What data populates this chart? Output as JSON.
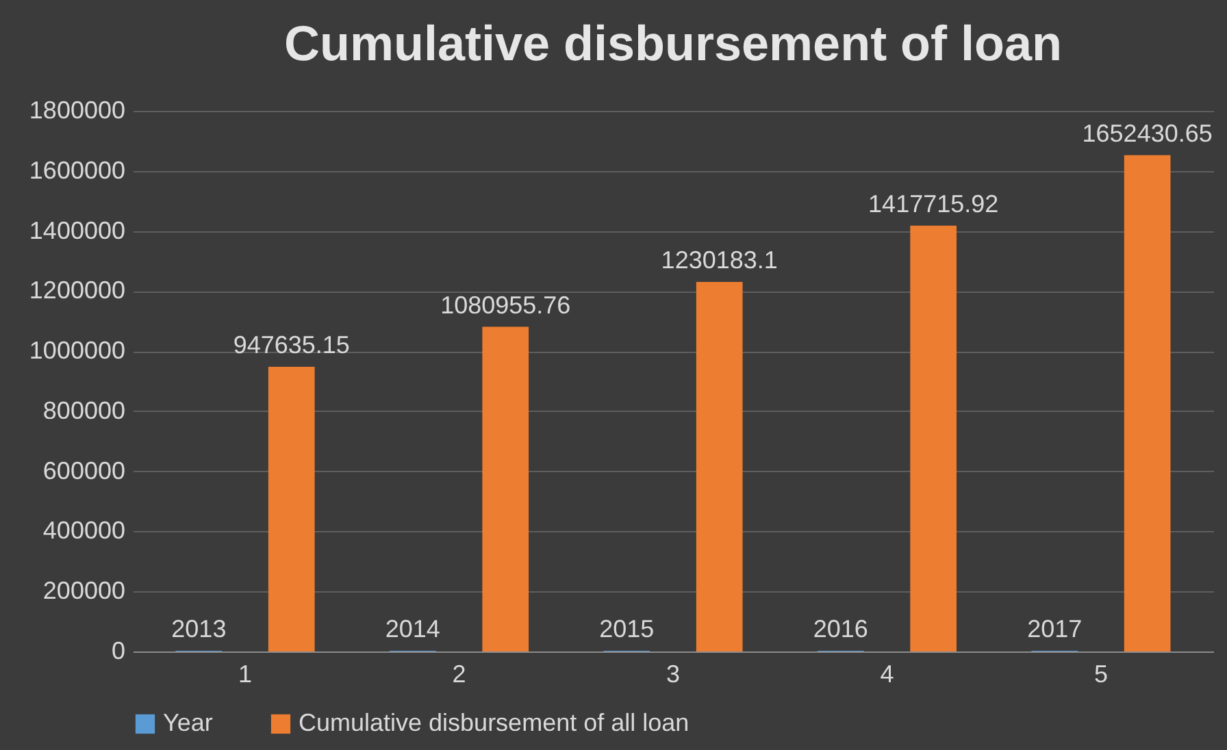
{
  "chart_data": {
    "type": "bar",
    "title": "Cumulative disbursement of loan",
    "categories": [
      "1",
      "2",
      "3",
      "4",
      "5"
    ],
    "series": [
      {
        "name": "Year",
        "color": "#5b9bd5",
        "values": [
          2013,
          2014,
          2015,
          2016,
          2017
        ]
      },
      {
        "name": "Cumulative disbursement of all loan",
        "color": "#ed7d31",
        "values": [
          947635.15,
          1080955.76,
          1230183.1,
          1417715.92,
          1652430.65
        ]
      }
    ],
    "ylim": [
      0,
      1800000
    ],
    "yticks": [
      0,
      200000,
      400000,
      600000,
      800000,
      1000000,
      1200000,
      1400000,
      1600000,
      1800000
    ],
    "grid": "y",
    "legend": "bottom",
    "data_labels": true
  }
}
